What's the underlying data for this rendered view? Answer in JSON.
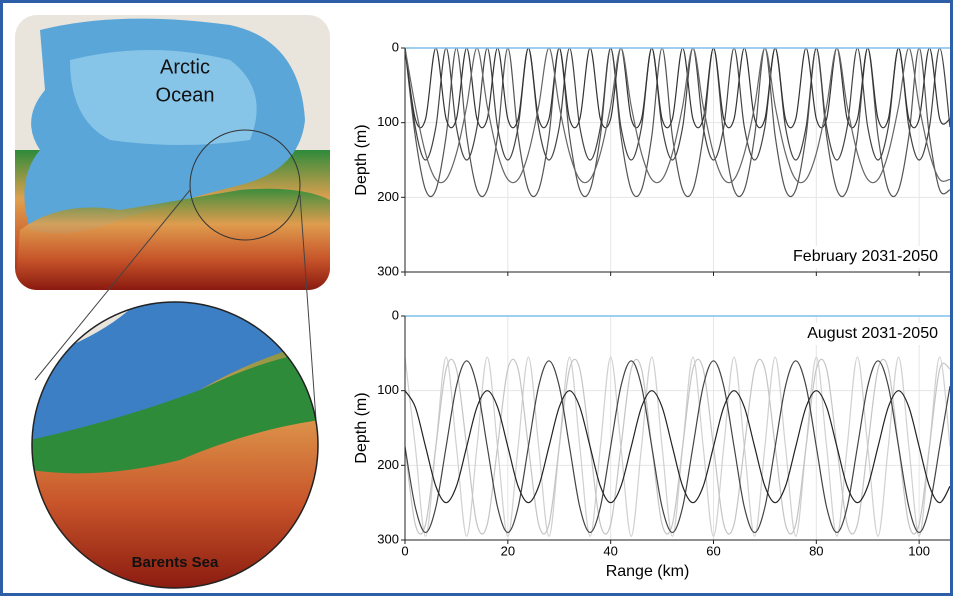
{
  "map": {
    "ocean_label": [
      "Arctic",
      "Ocean"
    ],
    "inset_label": "Barents Sea"
  },
  "chart_data": [
    {
      "type": "line",
      "annotation": "February 2031-2050",
      "ylabel": "Depth (m)",
      "x": [
        0,
        2,
        4,
        6,
        8,
        10,
        12,
        14,
        16,
        18,
        20,
        22,
        24,
        26,
        28,
        30,
        32,
        34,
        36,
        38,
        40,
        42,
        44,
        46,
        48,
        50,
        52,
        54,
        56,
        58,
        60,
        62,
        64,
        66,
        68,
        70,
        72,
        74,
        76,
        78,
        80,
        82,
        84,
        86,
        88,
        90,
        92,
        94,
        96,
        98,
        100,
        102,
        104,
        106
      ],
      "xlim": [
        0,
        106
      ],
      "xticks": [
        0,
        20,
        40,
        60,
        80,
        100
      ],
      "xtick_labels": false,
      "ylim": [
        0,
        300
      ],
      "yticks": [
        0,
        100,
        200,
        300
      ],
      "y_inverted": true,
      "grid": true,
      "surface_color": "#7fbfe8",
      "series": [
        {
          "color": "#555555",
          "values": [
            0,
            118,
            190,
            190,
            118,
            0,
            118,
            190,
            190,
            118,
            0,
            118,
            190,
            190,
            118,
            0,
            118,
            190,
            190,
            118,
            0,
            118,
            190,
            190,
            118,
            0,
            118,
            190,
            190,
            118,
            0,
            118,
            190,
            190,
            118,
            0,
            118,
            190,
            190,
            118,
            0,
            118,
            190,
            190,
            118,
            0,
            118,
            190,
            190,
            118,
            0,
            118,
            190,
            190
          ]
        },
        {
          "color": "#444444",
          "values": [
            0,
            106,
            150,
            106,
            0,
            106,
            150,
            106,
            0,
            106,
            150,
            106,
            0,
            106,
            150,
            106,
            0,
            106,
            150,
            106,
            0,
            106,
            150,
            106,
            0,
            106,
            150,
            106,
            0,
            106,
            150,
            106,
            0,
            106,
            150,
            106,
            0,
            106,
            150,
            106,
            0,
            106,
            150,
            106,
            0,
            106,
            150,
            106,
            0,
            106,
            150,
            106,
            0,
            106
          ]
        },
        {
          "color": "#333333",
          "values": [
            0,
            95,
            95,
            0,
            95,
            95,
            0,
            95,
            95,
            0,
            95,
            95,
            0,
            95,
            95,
            0,
            95,
            95,
            0,
            95,
            95,
            0,
            95,
            95,
            0,
            95,
            95,
            0,
            95,
            95,
            0,
            95,
            95,
            0,
            95,
            95,
            0,
            95,
            95,
            0,
            95,
            95,
            0,
            95,
            95,
            0,
            95,
            95,
            0,
            95,
            95,
            0,
            95,
            95
          ]
        },
        {
          "color": "#666666",
          "values": [
            0,
            78,
            141,
            176,
            176,
            141,
            78,
            0,
            78,
            141,
            176,
            176,
            141,
            78,
            0,
            78,
            141,
            176,
            176,
            141,
            78,
            0,
            78,
            141,
            176,
            176,
            141,
            78,
            0,
            78,
            141,
            176,
            176,
            141,
            78,
            0,
            78,
            141,
            176,
            176,
            141,
            78,
            0,
            78,
            141,
            176,
            176,
            141,
            78,
            0,
            78,
            141,
            176,
            176
          ]
        }
      ]
    },
    {
      "type": "line",
      "annotation": "August 2031-2050",
      "ylabel": "Depth (m)",
      "xlabel": "Range (km)",
      "x": [
        0,
        2,
        4,
        6,
        8,
        10,
        12,
        14,
        16,
        18,
        20,
        22,
        24,
        26,
        28,
        30,
        32,
        34,
        36,
        38,
        40,
        42,
        44,
        46,
        48,
        50,
        52,
        54,
        56,
        58,
        60,
        62,
        64,
        66,
        68,
        70,
        72,
        74,
        76,
        78,
        80,
        82,
        84,
        86,
        88,
        90,
        92,
        94,
        96,
        98,
        100,
        102,
        104,
        106
      ],
      "xlim": [
        0,
        106
      ],
      "xticks": [
        0,
        20,
        40,
        60,
        80,
        100
      ],
      "ylim": [
        0,
        300
      ],
      "yticks": [
        0,
        100,
        200,
        300
      ],
      "y_inverted": true,
      "grid": true,
      "surface_color": "#7fbfe8",
      "series": [
        {
          "color": "#d0d0d0",
          "values": [
            55,
            175,
            295,
            175,
            55,
            175,
            295,
            175,
            55,
            175,
            295,
            175,
            55,
            175,
            295,
            175,
            55,
            175,
            295,
            175,
            55,
            175,
            295,
            175,
            55,
            175,
            295,
            175,
            55,
            175,
            295,
            175,
            55,
            175,
            295,
            175,
            55,
            175,
            295,
            175,
            55,
            175,
            295,
            175,
            55,
            175,
            295,
            175,
            55,
            175,
            295,
            175,
            55,
            175
          ]
        },
        {
          "color": "#c4c4c4",
          "values": [
            175,
            279,
            279,
            175,
            71,
            71,
            175,
            279,
            279,
            175,
            71,
            71,
            175,
            279,
            279,
            175,
            71,
            71,
            175,
            279,
            279,
            175,
            71,
            71,
            175,
            279,
            279,
            175,
            71,
            71,
            175,
            279,
            279,
            175,
            71,
            71,
            175,
            279,
            279,
            175,
            71,
            71,
            175,
            279,
            279,
            175,
            71,
            71,
            175,
            279,
            279,
            175,
            71,
            71
          ]
        },
        {
          "color": "#444444",
          "values": [
            175,
            256,
            290,
            256,
            175,
            94,
            60,
            94,
            175,
            256,
            290,
            256,
            175,
            94,
            60,
            94,
            175,
            256,
            290,
            256,
            175,
            94,
            60,
            94,
            175,
            256,
            290,
            256,
            175,
            94,
            60,
            94,
            175,
            256,
            290,
            256,
            175,
            94,
            60,
            94,
            175,
            256,
            290,
            256,
            175,
            94,
            60,
            94,
            175,
            256,
            290,
            256,
            175,
            94
          ]
        },
        {
          "color": "#222222",
          "values": [
            100,
            122,
            175,
            228,
            250,
            228,
            175,
            122,
            100,
            122,
            175,
            228,
            250,
            228,
            175,
            122,
            100,
            122,
            175,
            228,
            250,
            228,
            175,
            122,
            100,
            122,
            175,
            228,
            250,
            228,
            175,
            122,
            100,
            122,
            175,
            228,
            250,
            228,
            175,
            122,
            100,
            122,
            175,
            228,
            250,
            228,
            175,
            122,
            100,
            122,
            175,
            228,
            250,
            228
          ]
        }
      ]
    }
  ]
}
